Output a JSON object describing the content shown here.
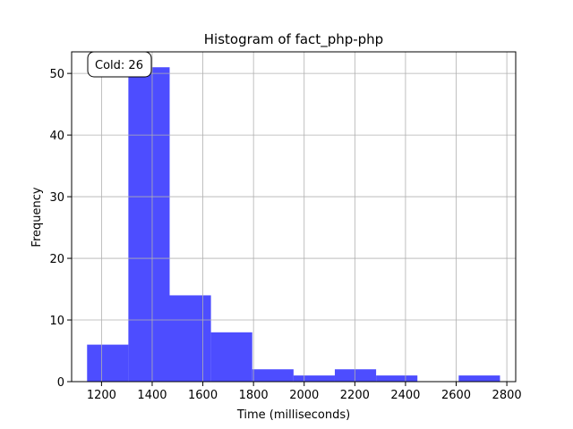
{
  "chart_data": {
    "type": "bar",
    "title": "Histogram of fact_php-php",
    "xlabel": "Time (milliseconds)",
    "ylabel": "Frequency",
    "bins": [
      {
        "start": 1143,
        "end": 1306,
        "count": 6
      },
      {
        "start": 1306,
        "end": 1469,
        "count": 51
      },
      {
        "start": 1469,
        "end": 1632,
        "count": 14
      },
      {
        "start": 1632,
        "end": 1795,
        "count": 8
      },
      {
        "start": 1795,
        "end": 1958,
        "count": 2
      },
      {
        "start": 1958,
        "end": 2121,
        "count": 1
      },
      {
        "start": 2121,
        "end": 2284,
        "count": 2
      },
      {
        "start": 2284,
        "end": 2447,
        "count": 1
      },
      {
        "start": 2447,
        "end": 2610,
        "count": 0
      },
      {
        "start": 2610,
        "end": 2773,
        "count": 1
      }
    ],
    "xlim": [
      1082,
      2835
    ],
    "ylim": [
      0,
      53.5
    ],
    "xticks": [
      1200,
      1400,
      1600,
      1800,
      2000,
      2200,
      2400,
      2600,
      2800
    ],
    "yticks": [
      0,
      10,
      20,
      30,
      40,
      50
    ],
    "grid": true,
    "bar_color": "#4d4dff",
    "annotation": {
      "text": "Cold: 26",
      "position": "top-left"
    }
  }
}
